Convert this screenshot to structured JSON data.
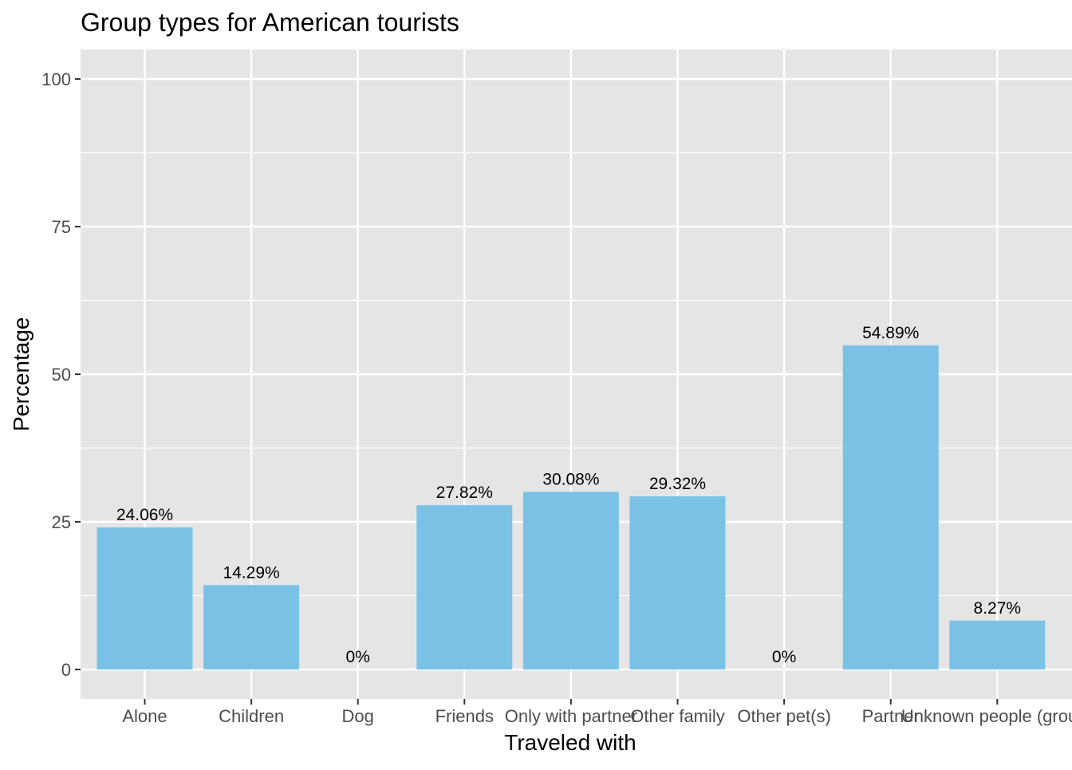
{
  "chart_data": {
    "type": "bar",
    "title": "Group types for American tourists",
    "xlabel": "Traveled with",
    "ylabel": "Percentage",
    "categories": [
      "Alone",
      "Children",
      "Dog",
      "Friends",
      "Only with partner",
      "Other family",
      "Other pet(s)",
      "Partner",
      "Unknown people (group)"
    ],
    "values": [
      24.06,
      14.29,
      0,
      27.82,
      30.08,
      29.32,
      0,
      54.89,
      8.27
    ],
    "data_labels": [
      "24.06%",
      "14.29%",
      "0%",
      "27.82%",
      "30.08%",
      "29.32%",
      "0%",
      "54.89%",
      "8.27%"
    ],
    "yticks": [
      0,
      25,
      50,
      75,
      100
    ],
    "ylim": [
      -5,
      105
    ],
    "grid": true,
    "colors": {
      "bar": "#7ac2e5",
      "panel": "#e5e5e5",
      "grid": "#ffffff",
      "tick_text": "#4d4d4d"
    }
  }
}
